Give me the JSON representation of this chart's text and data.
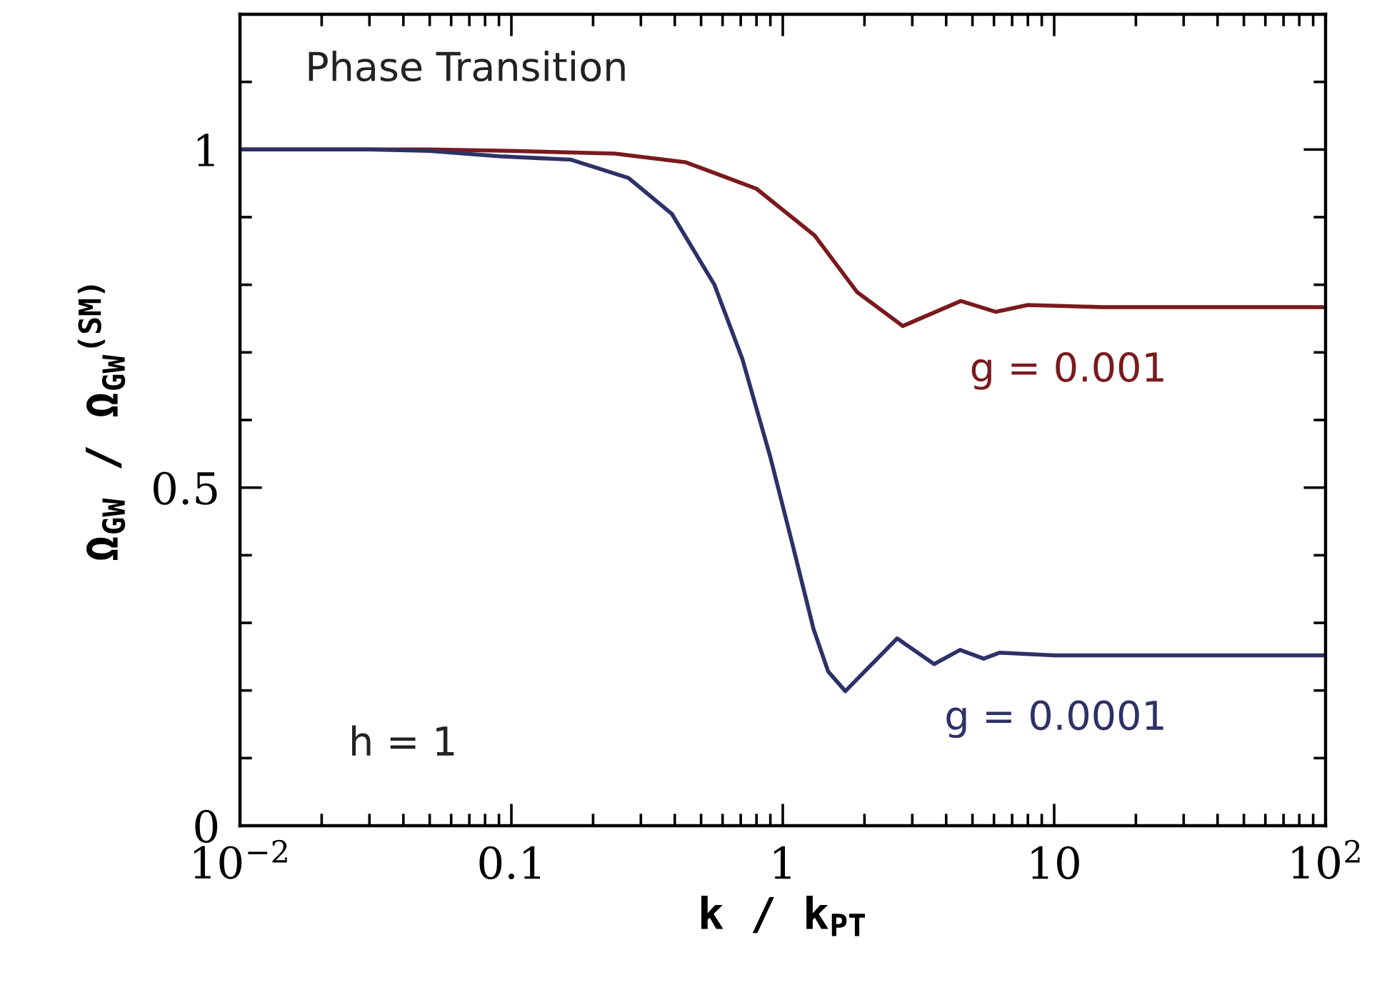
{
  "chart_data": {
    "type": "line",
    "xlabel": "k / k$_{PT}$",
    "ylabel": "Ω$_{GW}$ / Ω$_{GW}$$^{(SM)}$",
    "log": "x",
    "xlim": [
      0.01,
      100
    ],
    "xticks": [
      {
        "value": 0.01,
        "label": "10$^{−2}$"
      },
      0.1,
      1,
      10,
      {
        "value": 100,
        "label": "10$^{2}$"
      }
    ],
    "ylim": [
      0,
      1.2
    ],
    "yticks": [
      0,
      0.5,
      1
    ],
    "grid": false,
    "legend": false,
    "annotations": [
      "Phase Transition",
      "h = 1"
    ],
    "series": [
      {
        "name": "g = 0.001",
        "color": "#7a1a1e",
        "x": [
          0.01,
          0.05,
          0.1,
          0.24,
          0.44,
          0.8,
          1.31,
          1.88,
          2.77,
          4.53,
          6.1,
          8.0,
          15,
          30,
          100
        ],
        "values": [
          1.0,
          1.0,
          0.998,
          0.994,
          0.981,
          0.942,
          0.873,
          0.789,
          0.739,
          0.776,
          0.76,
          0.77,
          0.767,
          0.767,
          0.767
        ]
      },
      {
        "name": "g = 0.0001",
        "color": "#2e3166",
        "x": [
          0.01,
          0.03,
          0.05,
          0.09,
          0.166,
          0.27,
          0.39,
          0.56,
          0.71,
          0.9,
          1.08,
          1.3,
          1.47,
          1.7,
          2.64,
          3.61,
          4.5,
          5.5,
          6.3,
          10,
          30,
          100
        ],
        "values": [
          1.0,
          1.0,
          0.998,
          0.99,
          0.985,
          0.958,
          0.905,
          0.8,
          0.69,
          0.545,
          0.42,
          0.29,
          0.228,
          0.199,
          0.277,
          0.239,
          0.26,
          0.247,
          0.256,
          0.252,
          0.252,
          0.252
        ]
      }
    ]
  }
}
